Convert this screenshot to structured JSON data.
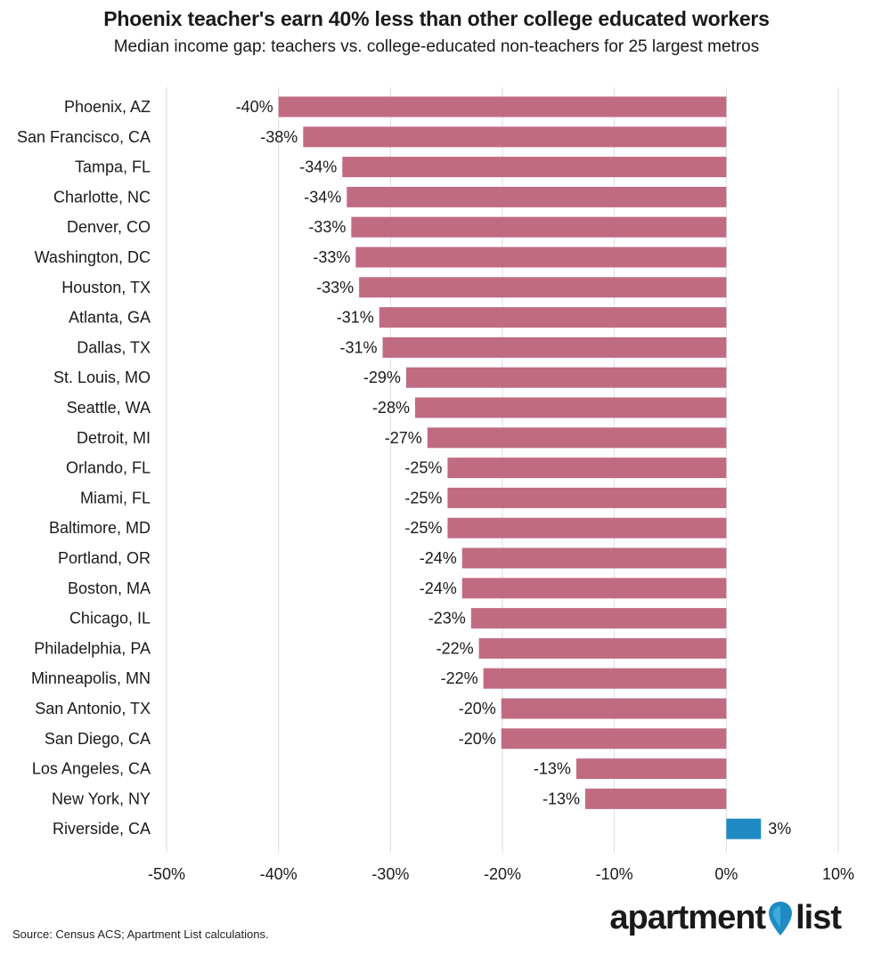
{
  "title": "Phoenix teacher's earn 40% less than other college educated workers",
  "subtitle": "Median income gap: teachers vs. college-educated non-teachers for 25 largest metros",
  "source": "Source: Census ACS; Apartment List calculations.",
  "brand": {
    "word1": "apartment",
    "word2": "list",
    "icon": "map-pin-icon"
  },
  "colors": {
    "negative": "#c06b82",
    "positive": "#1f8bc4",
    "grid": "#dddddd",
    "text": "#1a1a1a"
  },
  "chart_data": {
    "type": "bar",
    "orientation": "horizontal",
    "xlim": [
      -50,
      10
    ],
    "x_ticks": [
      -50,
      -40,
      -30,
      -20,
      -10,
      0,
      10
    ],
    "x_tick_labels": [
      "-50%",
      "-40%",
      "-30%",
      "-20%",
      "-10%",
      "0%",
      "10%"
    ],
    "grid": true,
    "categories": [
      "Phoenix, AZ",
      "San Francisco, CA",
      "Tampa, FL",
      "Charlotte, NC",
      "Denver, CO",
      "Washington, DC",
      "Houston, TX",
      "Atlanta, GA",
      "Dallas, TX",
      "St. Louis, MO",
      "Seattle, WA",
      "Detroit, MI",
      "Orlando, FL",
      "Miami, FL",
      "Baltimore, MD",
      "Portland, OR",
      "Boston, MA",
      "Chicago, IL",
      "Philadelphia, PA",
      "Minneapolis, MN",
      "San Antonio, TX",
      "San Diego, CA",
      "Los Angeles, CA",
      "New York, NY",
      "Riverside, CA"
    ],
    "values": [
      -40.0,
      -37.8,
      -34.3,
      -33.9,
      -33.5,
      -33.1,
      -32.8,
      -31.0,
      -30.7,
      -28.6,
      -27.8,
      -26.7,
      -24.9,
      -24.9,
      -24.9,
      -23.6,
      -23.6,
      -22.8,
      -22.1,
      -21.7,
      -20.1,
      -20.1,
      -13.4,
      -12.6,
      3.1
    ],
    "value_labels": [
      "-40%",
      "-38%",
      "-34%",
      "-34%",
      "-33%",
      "-33%",
      "-33%",
      "-31%",
      "-31%",
      "-29%",
      "-28%",
      "-27%",
      "-25%",
      "-25%",
      "-25%",
      "-24%",
      "-24%",
      "-23%",
      "-22%",
      "-22%",
      "-20%",
      "-20%",
      "-13%",
      "-13%",
      "3%"
    ]
  }
}
